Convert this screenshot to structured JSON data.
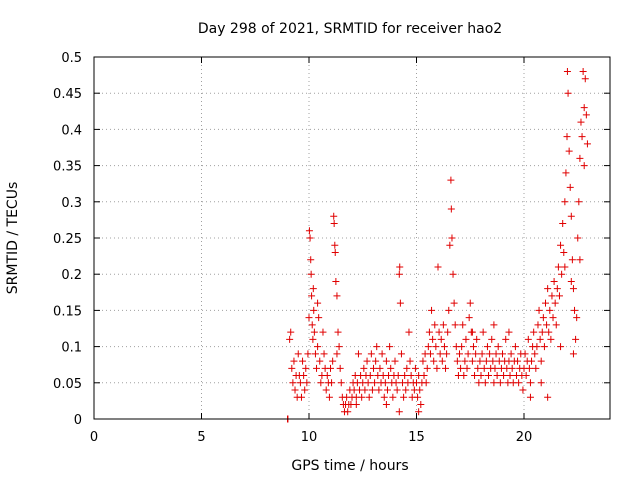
{
  "chart_data": {
    "type": "scatter",
    "title": "Day 298 of 2021, SRMTID for receiver hao2",
    "xlabel": "GPS time / hours",
    "ylabel": "SRMTID / TECUs",
    "xlim": [
      0,
      24
    ],
    "ylim": [
      0,
      0.5
    ],
    "xticks": [
      0,
      5,
      10,
      15,
      20
    ],
    "xtick_labels": [
      "0",
      "5",
      "10",
      "15",
      "20"
    ],
    "yticks": [
      0,
      0.05,
      0.1,
      0.15,
      0.2,
      0.25,
      0.3,
      0.35,
      0.4,
      0.45,
      0.5
    ],
    "ytick_labels": [
      "0",
      "0.05",
      "0.1",
      "0.15",
      "0.2",
      "0.25",
      "0.3",
      "0.35",
      "0.4",
      "0.45",
      "0.5"
    ],
    "grid": true,
    "marker": "+",
    "color": "#e00000",
    "series": [
      {
        "name": "hao2",
        "points": [
          [
            9.0,
            0.0
          ],
          [
            9.02,
            0.0
          ],
          [
            9.1,
            0.11
          ],
          [
            9.15,
            0.12
          ],
          [
            9.2,
            0.07
          ],
          [
            9.25,
            0.05
          ],
          [
            9.3,
            0.08
          ],
          [
            9.35,
            0.04
          ],
          [
            9.4,
            0.06
          ],
          [
            9.45,
            0.03
          ],
          [
            9.5,
            0.09
          ],
          [
            9.55,
            0.06
          ],
          [
            9.6,
            0.05
          ],
          [
            9.65,
            0.03
          ],
          [
            9.7,
            0.08
          ],
          [
            9.75,
            0.06
          ],
          [
            9.8,
            0.04
          ],
          [
            9.85,
            0.07
          ],
          [
            9.9,
            0.05
          ],
          [
            9.95,
            0.09
          ],
          [
            10.0,
            0.14
          ],
          [
            10.02,
            0.26
          ],
          [
            10.05,
            0.25
          ],
          [
            10.08,
            0.22
          ],
          [
            10.1,
            0.2
          ],
          [
            10.12,
            0.17
          ],
          [
            10.15,
            0.13
          ],
          [
            10.18,
            0.11
          ],
          [
            10.2,
            0.18
          ],
          [
            10.22,
            0.15
          ],
          [
            10.25,
            0.12
          ],
          [
            10.3,
            0.09
          ],
          [
            10.35,
            0.07
          ],
          [
            10.4,
            0.1
          ],
          [
            10.45,
            0.14
          ],
          [
            10.5,
            0.08
          ],
          [
            10.55,
            0.05
          ],
          [
            10.6,
            0.06
          ],
          [
            10.65,
            0.12
          ],
          [
            10.7,
            0.09
          ],
          [
            10.75,
            0.07
          ],
          [
            10.8,
            0.04
          ],
          [
            10.85,
            0.06
          ],
          [
            10.9,
            0.05
          ],
          [
            10.95,
            0.03
          ],
          [
            11.0,
            0.07
          ],
          [
            11.05,
            0.05
          ],
          [
            11.1,
            0.08
          ],
          [
            11.15,
            0.28
          ],
          [
            11.17,
            0.27
          ],
          [
            11.2,
            0.24
          ],
          [
            11.22,
            0.23
          ],
          [
            11.25,
            0.19
          ],
          [
            11.3,
            0.17
          ],
          [
            11.35,
            0.12
          ],
          [
            11.4,
            0.1
          ],
          [
            11.45,
            0.07
          ],
          [
            11.5,
            0.05
          ],
          [
            11.55,
            0.03
          ],
          [
            11.6,
            0.02
          ],
          [
            11.65,
            0.01
          ],
          [
            11.7,
            0.02
          ],
          [
            11.75,
            0.03
          ],
          [
            11.8,
            0.01
          ],
          [
            11.85,
            0.02
          ],
          [
            11.9,
            0.04
          ],
          [
            11.95,
            0.02
          ],
          [
            12.0,
            0.03
          ],
          [
            12.05,
            0.05
          ],
          [
            12.1,
            0.04
          ],
          [
            12.15,
            0.06
          ],
          [
            12.2,
            0.03
          ],
          [
            12.25,
            0.05
          ],
          [
            12.3,
            0.09
          ],
          [
            12.35,
            0.04
          ],
          [
            12.4,
            0.06
          ],
          [
            12.45,
            0.03
          ],
          [
            12.5,
            0.05
          ],
          [
            12.55,
            0.07
          ],
          [
            12.6,
            0.04
          ],
          [
            12.65,
            0.06
          ],
          [
            12.7,
            0.08
          ],
          [
            12.75,
            0.05
          ],
          [
            12.8,
            0.03
          ],
          [
            12.85,
            0.06
          ],
          [
            12.9,
            0.09
          ],
          [
            12.95,
            0.04
          ],
          [
            13.0,
            0.07
          ],
          [
            13.05,
            0.05
          ],
          [
            13.1,
            0.08
          ],
          [
            13.15,
            0.1
          ],
          [
            13.2,
            0.06
          ],
          [
            13.25,
            0.04
          ],
          [
            13.3,
            0.07
          ],
          [
            13.35,
            0.05
          ],
          [
            13.4,
            0.09
          ],
          [
            13.45,
            0.06
          ],
          [
            13.5,
            0.03
          ],
          [
            13.55,
            0.05
          ],
          [
            13.6,
            0.08
          ],
          [
            13.65,
            0.04
          ],
          [
            13.7,
            0.06
          ],
          [
            13.75,
            0.1
          ],
          [
            13.8,
            0.07
          ],
          [
            13.85,
            0.05
          ],
          [
            13.9,
            0.03
          ],
          [
            13.95,
            0.06
          ],
          [
            14.0,
            0.08
          ],
          [
            14.05,
            0.05
          ],
          [
            14.1,
            0.04
          ],
          [
            14.15,
            0.06
          ],
          [
            14.2,
            0.2
          ],
          [
            14.22,
            0.21
          ],
          [
            14.25,
            0.16
          ],
          [
            14.3,
            0.09
          ],
          [
            14.35,
            0.05
          ],
          [
            14.4,
            0.03
          ],
          [
            14.45,
            0.06
          ],
          [
            14.5,
            0.04
          ],
          [
            14.55,
            0.07
          ],
          [
            14.6,
            0.05
          ],
          [
            14.65,
            0.12
          ],
          [
            14.7,
            0.08
          ],
          [
            14.75,
            0.06
          ],
          [
            14.8,
            0.03
          ],
          [
            14.85,
            0.05
          ],
          [
            14.9,
            0.04
          ],
          [
            14.95,
            0.07
          ],
          [
            15.0,
            0.05
          ],
          [
            15.05,
            0.03
          ],
          [
            15.1,
            0.06
          ],
          [
            15.15,
            0.04
          ],
          [
            15.2,
            0.02
          ],
          [
            15.25,
            0.05
          ],
          [
            15.3,
            0.08
          ],
          [
            15.35,
            0.06
          ],
          [
            15.4,
            0.09
          ],
          [
            15.45,
            0.05
          ],
          [
            15.5,
            0.07
          ],
          [
            15.55,
            0.1
          ],
          [
            15.6,
            0.12
          ],
          [
            15.65,
            0.09
          ],
          [
            15.7,
            0.15
          ],
          [
            15.75,
            0.11
          ],
          [
            15.8,
            0.08
          ],
          [
            15.85,
            0.13
          ],
          [
            15.9,
            0.1
          ],
          [
            15.95,
            0.07
          ],
          [
            16.0,
            0.21
          ],
          [
            16.05,
            0.12
          ],
          [
            16.1,
            0.09
          ],
          [
            16.15,
            0.11
          ],
          [
            16.2,
            0.08
          ],
          [
            16.25,
            0.13
          ],
          [
            16.3,
            0.1
          ],
          [
            16.35,
            0.07
          ],
          [
            16.4,
            0.09
          ],
          [
            16.45,
            0.12
          ],
          [
            16.5,
            0.15
          ],
          [
            16.55,
            0.24
          ],
          [
            16.6,
            0.33
          ],
          [
            16.62,
            0.29
          ],
          [
            16.65,
            0.25
          ],
          [
            16.7,
            0.2
          ],
          [
            16.75,
            0.16
          ],
          [
            16.8,
            0.13
          ],
          [
            16.85,
            0.1
          ],
          [
            16.9,
            0.08
          ],
          [
            16.95,
            0.06
          ],
          [
            17.0,
            0.09
          ],
          [
            17.05,
            0.07
          ],
          [
            17.1,
            0.1
          ],
          [
            17.15,
            0.13
          ],
          [
            17.2,
            0.06
          ],
          [
            17.25,
            0.08
          ],
          [
            17.3,
            0.11
          ],
          [
            17.35,
            0.07
          ],
          [
            17.4,
            0.09
          ],
          [
            17.45,
            0.14
          ],
          [
            17.5,
            0.16
          ],
          [
            17.55,
            0.12
          ],
          [
            17.6,
            0.08
          ],
          [
            17.65,
            0.1
          ],
          [
            17.7,
            0.06
          ],
          [
            17.75,
            0.09
          ],
          [
            17.8,
            0.11
          ],
          [
            17.85,
            0.07
          ],
          [
            17.9,
            0.05
          ],
          [
            17.95,
            0.08
          ],
          [
            18.0,
            0.06
          ],
          [
            18.05,
            0.09
          ],
          [
            18.1,
            0.12
          ],
          [
            18.15,
            0.07
          ],
          [
            18.2,
            0.05
          ],
          [
            18.25,
            0.08
          ],
          [
            18.3,
            0.1
          ],
          [
            18.35,
            0.06
          ],
          [
            18.4,
            0.09
          ],
          [
            18.45,
            0.07
          ],
          [
            18.5,
            0.11
          ],
          [
            18.55,
            0.08
          ],
          [
            18.6,
            0.05
          ],
          [
            18.65,
            0.07
          ],
          [
            18.7,
            0.09
          ],
          [
            18.75,
            0.06
          ],
          [
            18.8,
            0.1
          ],
          [
            18.85,
            0.08
          ],
          [
            18.9,
            0.05
          ],
          [
            18.95,
            0.07
          ],
          [
            19.0,
            0.09
          ],
          [
            19.05,
            0.06
          ],
          [
            19.1,
            0.08
          ],
          [
            19.15,
            0.11
          ],
          [
            19.2,
            0.07
          ],
          [
            19.25,
            0.05
          ],
          [
            19.3,
            0.08
          ],
          [
            19.35,
            0.06
          ],
          [
            19.4,
            0.09
          ],
          [
            19.45,
            0.07
          ],
          [
            19.5,
            0.05
          ],
          [
            19.55,
            0.08
          ],
          [
            19.6,
            0.1
          ],
          [
            19.65,
            0.06
          ],
          [
            19.7,
            0.08
          ],
          [
            19.75,
            0.05
          ],
          [
            19.8,
            0.07
          ],
          [
            19.85,
            0.09
          ],
          [
            19.9,
            0.06
          ],
          [
            19.95,
            0.04
          ],
          [
            20.0,
            0.07
          ],
          [
            20.05,
            0.09
          ],
          [
            20.1,
            0.06
          ],
          [
            20.15,
            0.08
          ],
          [
            20.2,
            0.11
          ],
          [
            20.25,
            0.07
          ],
          [
            20.3,
            0.05
          ],
          [
            20.35,
            0.08
          ],
          [
            20.4,
            0.1
          ],
          [
            20.45,
            0.12
          ],
          [
            20.5,
            0.09
          ],
          [
            20.55,
            0.07
          ],
          [
            20.6,
            0.1
          ],
          [
            20.65,
            0.13
          ],
          [
            20.7,
            0.15
          ],
          [
            20.75,
            0.11
          ],
          [
            20.8,
            0.08
          ],
          [
            20.85,
            0.12
          ],
          [
            20.9,
            0.14
          ],
          [
            20.95,
            0.1
          ],
          [
            21.0,
            0.16
          ],
          [
            21.05,
            0.13
          ],
          [
            21.1,
            0.18
          ],
          [
            21.15,
            0.12
          ],
          [
            21.2,
            0.15
          ],
          [
            21.25,
            0.11
          ],
          [
            21.3,
            0.17
          ],
          [
            21.35,
            0.14
          ],
          [
            21.4,
            0.19
          ],
          [
            21.45,
            0.16
          ],
          [
            21.5,
            0.13
          ],
          [
            21.55,
            0.18
          ],
          [
            21.6,
            0.21
          ],
          [
            21.65,
            0.17
          ],
          [
            21.7,
            0.24
          ],
          [
            21.75,
            0.2
          ],
          [
            21.8,
            0.27
          ],
          [
            21.85,
            0.23
          ],
          [
            21.9,
            0.3
          ],
          [
            21.95,
            0.34
          ],
          [
            22.0,
            0.39
          ],
          [
            22.02,
            0.48
          ],
          [
            22.05,
            0.45
          ],
          [
            22.1,
            0.37
          ],
          [
            22.15,
            0.32
          ],
          [
            22.2,
            0.28
          ],
          [
            22.25,
            0.22
          ],
          [
            22.3,
            0.18
          ],
          [
            22.35,
            0.15
          ],
          [
            22.4,
            0.11
          ],
          [
            22.45,
            0.14
          ],
          [
            22.5,
            0.25
          ],
          [
            22.55,
            0.3
          ],
          [
            22.6,
            0.36
          ],
          [
            22.65,
            0.41
          ],
          [
            22.7,
            0.39
          ],
          [
            22.75,
            0.48
          ],
          [
            22.8,
            0.43
          ],
          [
            22.85,
            0.47
          ],
          [
            22.9,
            0.42
          ],
          [
            22.95,
            0.38
          ],
          [
            10.4,
            0.16
          ],
          [
            11.3,
            0.09
          ],
          [
            12.2,
            0.02
          ],
          [
            13.6,
            0.02
          ],
          [
            14.2,
            0.01
          ],
          [
            15.1,
            0.01
          ],
          [
            17.6,
            0.12
          ],
          [
            18.6,
            0.13
          ],
          [
            19.3,
            0.12
          ],
          [
            20.3,
            0.03
          ],
          [
            20.8,
            0.05
          ],
          [
            21.1,
            0.03
          ],
          [
            21.7,
            0.1
          ],
          [
            22.3,
            0.09
          ],
          [
            22.6,
            0.22
          ],
          [
            22.2,
            0.19
          ],
          [
            21.9,
            0.21
          ],
          [
            22.8,
            0.35
          ]
        ]
      }
    ]
  }
}
